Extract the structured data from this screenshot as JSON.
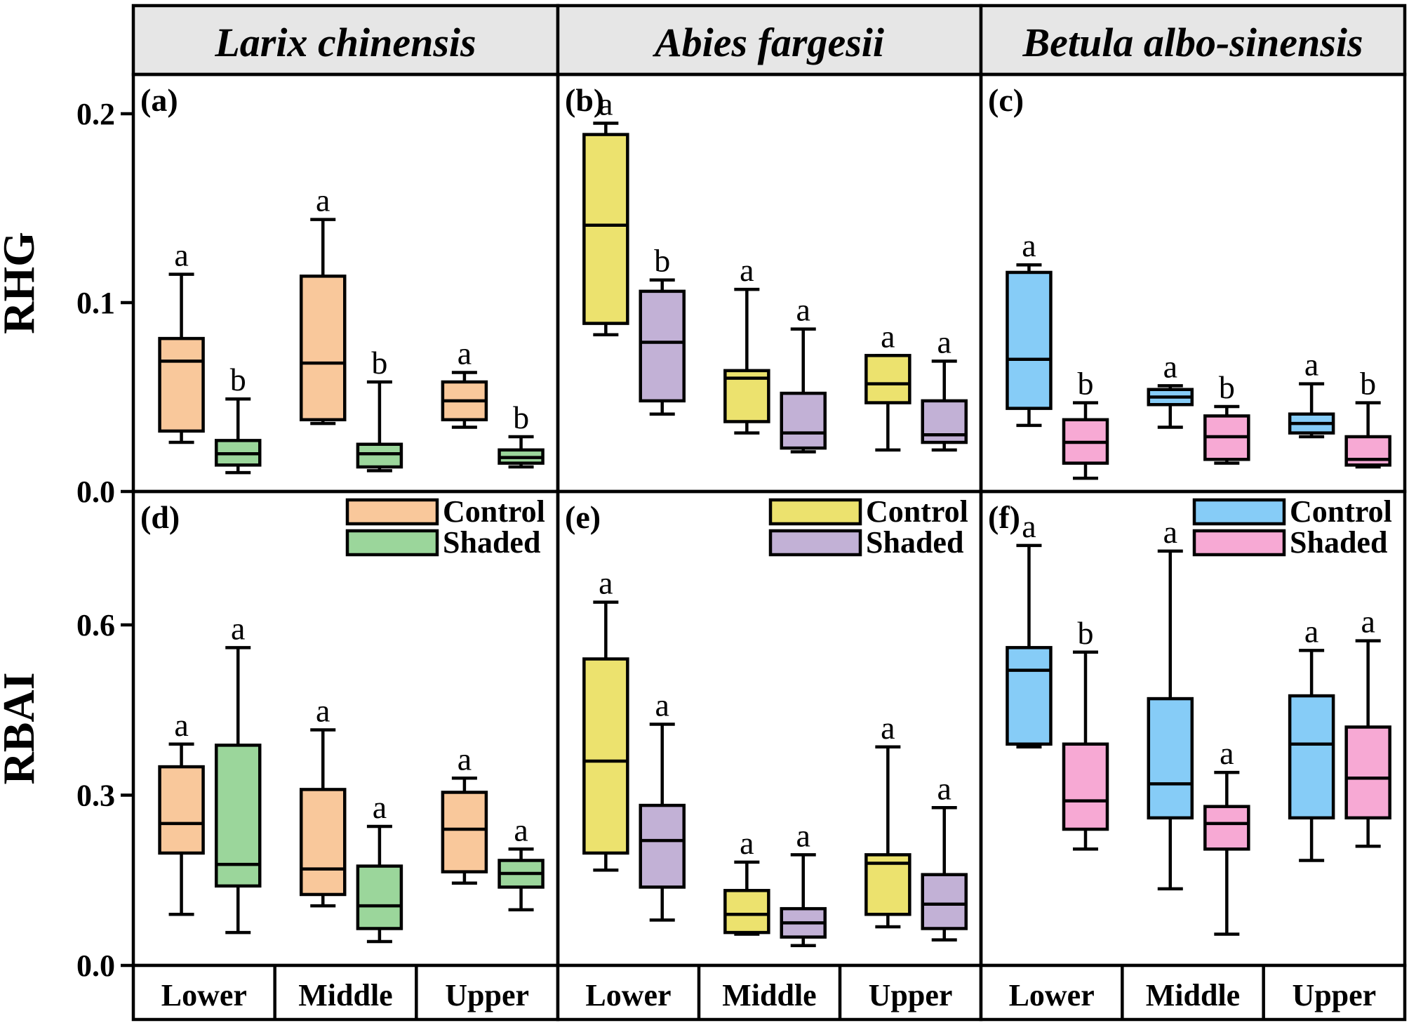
{
  "chart_data": {
    "type": "box",
    "species": [
      "Larix chinensis",
      "Abies fargesii",
      "Betula albo-sinensis"
    ],
    "categories": [
      "Lower",
      "Middle",
      "Upper"
    ],
    "treatments": [
      "Control",
      "Shaded"
    ],
    "colors": {
      "Larix chinensis": {
        "Control": "#F9C89B",
        "Shaded": "#9BD69B"
      },
      "Abies fargesii": {
        "Control": "#ECE26E",
        "Shaded": "#C2B1D6"
      },
      "Betula albo-sinensis": {
        "Control": "#86CCF7",
        "Shaded": "#F7A9D4"
      }
    },
    "rows": [
      {
        "ylabel": "RHG",
        "ylim": [
          0,
          0.22
        ],
        "yticks": [
          0.0,
          0.1,
          0.2
        ],
        "tick_labels": [
          "0.0",
          "0.1",
          "0.2"
        ],
        "panels": [
          {
            "label": "(a)",
            "boxes": [
              {
                "category": "Lower",
                "treatment": "Control",
                "min": 0.026,
                "q1": 0.032,
                "median": 0.069,
                "q3": 0.081,
                "max": 0.115,
                "letter": "a"
              },
              {
                "category": "Lower",
                "treatment": "Shaded",
                "min": 0.01,
                "q1": 0.014,
                "median": 0.02,
                "q3": 0.027,
                "max": 0.049,
                "letter": "b"
              },
              {
                "category": "Middle",
                "treatment": "Control",
                "min": 0.036,
                "q1": 0.038,
                "median": 0.068,
                "q3": 0.114,
                "max": 0.144,
                "letter": "a"
              },
              {
                "category": "Middle",
                "treatment": "Shaded",
                "min": 0.011,
                "q1": 0.013,
                "median": 0.02,
                "q3": 0.025,
                "max": 0.058,
                "letter": "b"
              },
              {
                "category": "Upper",
                "treatment": "Control",
                "min": 0.034,
                "q1": 0.038,
                "median": 0.048,
                "q3": 0.058,
                "max": 0.063,
                "letter": "a"
              },
              {
                "category": "Upper",
                "treatment": "Shaded",
                "min": 0.013,
                "q1": 0.015,
                "median": 0.018,
                "q3": 0.022,
                "max": 0.029,
                "letter": "b"
              }
            ]
          },
          {
            "label": "(b)",
            "boxes": [
              {
                "category": "Lower",
                "treatment": "Control",
                "min": 0.083,
                "q1": 0.089,
                "median": 0.141,
                "q3": 0.189,
                "max": 0.195,
                "letter": "a"
              },
              {
                "category": "Lower",
                "treatment": "Shaded",
                "min": 0.041,
                "q1": 0.048,
                "median": 0.079,
                "q3": 0.106,
                "max": 0.112,
                "letter": "b"
              },
              {
                "category": "Middle",
                "treatment": "Control",
                "min": 0.031,
                "q1": 0.037,
                "median": 0.06,
                "q3": 0.064,
                "max": 0.107,
                "letter": "a"
              },
              {
                "category": "Middle",
                "treatment": "Shaded",
                "min": 0.021,
                "q1": 0.023,
                "median": 0.031,
                "q3": 0.052,
                "max": 0.086,
                "letter": "a"
              },
              {
                "category": "Upper",
                "treatment": "Control",
                "min": 0.022,
                "q1": 0.047,
                "median": 0.057,
                "q3": 0.072,
                "max": 0.072,
                "letter": "a"
              },
              {
                "category": "Upper",
                "treatment": "Shaded",
                "min": 0.022,
                "q1": 0.026,
                "median": 0.03,
                "q3": 0.048,
                "max": 0.069,
                "letter": "a"
              }
            ]
          },
          {
            "label": "(c)",
            "boxes": [
              {
                "category": "Lower",
                "treatment": "Control",
                "min": 0.035,
                "q1": 0.044,
                "median": 0.07,
                "q3": 0.116,
                "max": 0.12,
                "letter": "a"
              },
              {
                "category": "Lower",
                "treatment": "Shaded",
                "min": 0.007,
                "q1": 0.015,
                "median": 0.026,
                "q3": 0.038,
                "max": 0.047,
                "letter": "b"
              },
              {
                "category": "Middle",
                "treatment": "Control",
                "min": 0.034,
                "q1": 0.046,
                "median": 0.05,
                "q3": 0.054,
                "max": 0.056,
                "letter": "a"
              },
              {
                "category": "Middle",
                "treatment": "Shaded",
                "min": 0.015,
                "q1": 0.017,
                "median": 0.029,
                "q3": 0.04,
                "max": 0.045,
                "letter": "b"
              },
              {
                "category": "Upper",
                "treatment": "Control",
                "min": 0.029,
                "q1": 0.031,
                "median": 0.036,
                "q3": 0.041,
                "max": 0.057,
                "letter": "a"
              },
              {
                "category": "Upper",
                "treatment": "Shaded",
                "min": 0.013,
                "q1": 0.014,
                "median": 0.017,
                "q3": 0.029,
                "max": 0.047,
                "letter": "b"
              }
            ]
          }
        ]
      },
      {
        "ylabel": "RBAI",
        "ylim": [
          0,
          0.84
        ],
        "yticks": [
          0.0,
          0.3,
          0.6
        ],
        "tick_labels": [
          "0.0",
          "0.3",
          "0.6"
        ],
        "panels": [
          {
            "label": "(d)",
            "boxes": [
              {
                "category": "Lower",
                "treatment": "Control",
                "min": 0.09,
                "q1": 0.198,
                "median": 0.25,
                "q3": 0.35,
                "max": 0.39,
                "letter": "a"
              },
              {
                "category": "Lower",
                "treatment": "Shaded",
                "min": 0.058,
                "q1": 0.14,
                "median": 0.178,
                "q3": 0.388,
                "max": 0.56,
                "letter": "a"
              },
              {
                "category": "Middle",
                "treatment": "Control",
                "min": 0.105,
                "q1": 0.125,
                "median": 0.17,
                "q3": 0.31,
                "max": 0.415,
                "letter": "a"
              },
              {
                "category": "Middle",
                "treatment": "Shaded",
                "min": 0.042,
                "q1": 0.065,
                "median": 0.105,
                "q3": 0.175,
                "max": 0.245,
                "letter": "a"
              },
              {
                "category": "Upper",
                "treatment": "Control",
                "min": 0.145,
                "q1": 0.165,
                "median": 0.24,
                "q3": 0.305,
                "max": 0.33,
                "letter": "a"
              },
              {
                "category": "Upper",
                "treatment": "Shaded",
                "min": 0.098,
                "q1": 0.138,
                "median": 0.162,
                "q3": 0.185,
                "max": 0.205,
                "letter": "a"
              }
            ]
          },
          {
            "label": "(e)",
            "boxes": [
              {
                "category": "Lower",
                "treatment": "Control",
                "min": 0.168,
                "q1": 0.198,
                "median": 0.36,
                "q3": 0.54,
                "max": 0.64,
                "letter": "a"
              },
              {
                "category": "Lower",
                "treatment": "Shaded",
                "min": 0.08,
                "q1": 0.138,
                "median": 0.22,
                "q3": 0.282,
                "max": 0.425,
                "letter": "a"
              },
              {
                "category": "Middle",
                "treatment": "Control",
                "min": 0.055,
                "q1": 0.058,
                "median": 0.09,
                "q3": 0.132,
                "max": 0.182,
                "letter": "a"
              },
              {
                "category": "Middle",
                "treatment": "Shaded",
                "min": 0.035,
                "q1": 0.05,
                "median": 0.075,
                "q3": 0.1,
                "max": 0.195,
                "letter": "a"
              },
              {
                "category": "Upper",
                "treatment": "Control",
                "min": 0.068,
                "q1": 0.09,
                "median": 0.18,
                "q3": 0.195,
                "max": 0.385,
                "letter": "a"
              },
              {
                "category": "Upper",
                "treatment": "Shaded",
                "min": 0.045,
                "q1": 0.065,
                "median": 0.108,
                "q3": 0.16,
                "max": 0.278,
                "letter": "a"
              }
            ]
          },
          {
            "label": "(f)",
            "boxes": [
              {
                "category": "Lower",
                "treatment": "Control",
                "min": 0.385,
                "q1": 0.39,
                "median": 0.52,
                "q3": 0.56,
                "max": 0.74,
                "letter": "a"
              },
              {
                "category": "Lower",
                "treatment": "Shaded",
                "min": 0.205,
                "q1": 0.24,
                "median": 0.29,
                "q3": 0.39,
                "max": 0.552,
                "letter": "b"
              },
              {
                "category": "Middle",
                "treatment": "Control",
                "min": 0.135,
                "q1": 0.26,
                "median": 0.32,
                "q3": 0.47,
                "max": 0.73,
                "letter": "a"
              },
              {
                "category": "Middle",
                "treatment": "Shaded",
                "min": 0.055,
                "q1": 0.205,
                "median": 0.25,
                "q3": 0.28,
                "max": 0.34,
                "letter": "a"
              },
              {
                "category": "Upper",
                "treatment": "Control",
                "min": 0.185,
                "q1": 0.26,
                "median": 0.39,
                "q3": 0.475,
                "max": 0.555,
                "letter": "a"
              },
              {
                "category": "Upper",
                "treatment": "Shaded",
                "min": 0.21,
                "q1": 0.26,
                "median": 0.33,
                "q3": 0.42,
                "max": 0.572,
                "letter": "a"
              }
            ]
          }
        ]
      }
    ]
  }
}
